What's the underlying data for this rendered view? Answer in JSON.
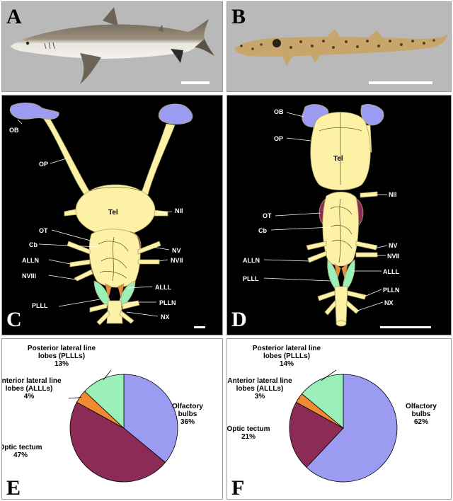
{
  "panels": {
    "A": {
      "letter": "A"
    },
    "B": {
      "letter": "B"
    },
    "C": {
      "letter": "C",
      "labels": {
        "OB": "OB",
        "OP": "OP",
        "Tel": "Tel",
        "NII": "NII",
        "OT": "OT",
        "Cb": "Cb",
        "NV": "NV",
        "ALLN": "ALLN",
        "NVII": "NVII",
        "NVIII": "NVIII",
        "ALLL": "ALLL",
        "PLLL": "PLLL",
        "PLLN": "PLLN",
        "NX": "NX"
      }
    },
    "D": {
      "letter": "D",
      "labels": {
        "OB": "OB",
        "OP": "OP",
        "Tel": "Tel",
        "NII": "NII",
        "OT": "OT",
        "Cb": "Cb",
        "NV": "NV",
        "NVII": "NVII",
        "ALLN": "ALLN",
        "ALLL": "ALLL",
        "PLLL": "PLLL",
        "PLLN": "PLLN",
        "NX": "NX"
      }
    },
    "E": {
      "letter": "E"
    },
    "F": {
      "letter": "F"
    }
  },
  "colors": {
    "olfactory": "#9b9bf2",
    "optic": "#8c2c56",
    "anterior": "#f08a33",
    "posterior": "#9af0b8",
    "brain": "#fdf1a5",
    "cerebellum": "#c98552"
  },
  "chart_data": [
    {
      "type": "pie",
      "panel": "E",
      "slices": [
        {
          "name": "Olfactory bulbs",
          "value": 36,
          "label_lines": [
            "Olfactory",
            "bulbs",
            "36%"
          ],
          "color": "#9b9bf2"
        },
        {
          "name": "Optic tectum",
          "value": 47,
          "label_lines": [
            "Optic tectum",
            "47%"
          ],
          "color": "#8c2c56"
        },
        {
          "name": "Anterior lateral line lobes (ALLLs)",
          "value": 4,
          "label_lines": [
            "Anterior lateral line",
            "lobes (ALLLs)",
            "4%"
          ],
          "color": "#f08a33"
        },
        {
          "name": "Posterior lateral line lobes (PLLLs)",
          "value": 13,
          "label_lines": [
            "Posterior lateral line",
            "lobes (PLLLs)",
            "13%"
          ],
          "color": "#9af0b8"
        }
      ]
    },
    {
      "type": "pie",
      "panel": "F",
      "slices": [
        {
          "name": "Olfactory bulbs",
          "value": 62,
          "label_lines": [
            "Olfactory",
            "bulbs",
            "62%"
          ],
          "color": "#9b9bf2"
        },
        {
          "name": "Optic tectum",
          "value": 21,
          "label_lines": [
            "Optic tectum",
            "21%"
          ],
          "color": "#8c2c56"
        },
        {
          "name": "Anterior lateral line lobes (ALLLs)",
          "value": 3,
          "label_lines": [
            "Anterior lateral line",
            "lobes (ALLLs)",
            "3%"
          ],
          "color": "#f08a33"
        },
        {
          "name": "Posterior lateral line lobes (PLLLs)",
          "value": 14,
          "label_lines": [
            "Posterior lateral line",
            "lobes (PLLLs)",
            "14%"
          ],
          "color": "#9af0b8"
        }
      ]
    }
  ]
}
